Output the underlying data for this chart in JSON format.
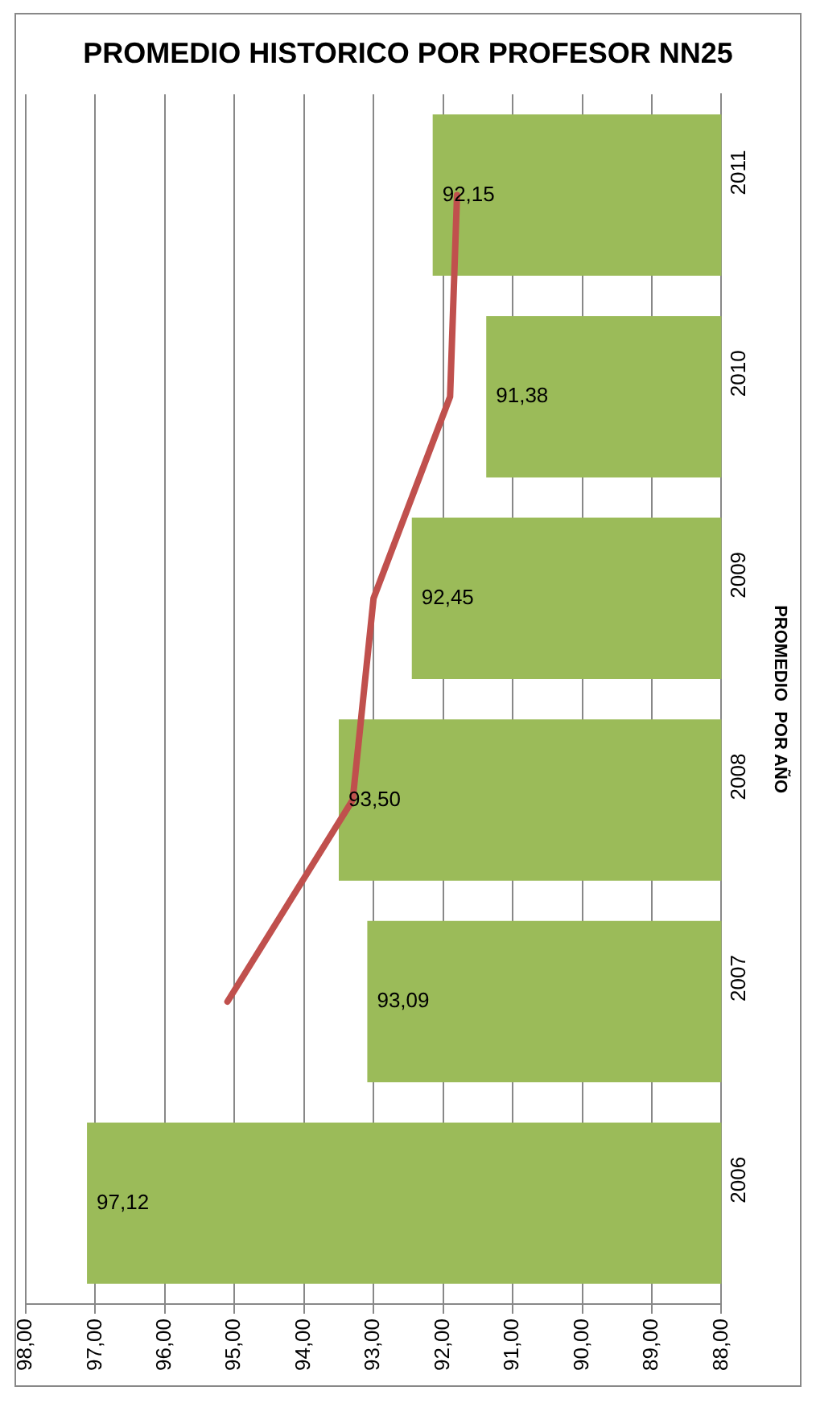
{
  "chart_data": {
    "type": "bar",
    "orientation": "horizontal",
    "title": "PROMEDIO HISTORICO POR PROFESOR NN25",
    "ylabel": "PROMEDIO  POR AÑO",
    "categories": [
      "2011",
      "2010",
      "2009",
      "2008",
      "2007",
      "2006"
    ],
    "series": [
      {
        "color": "#9bbb59",
        "values": [
          92.15,
          91.38,
          92.45,
          93.5,
          93.09,
          97.12
        ],
        "value_labels": [
          "92,15",
          "91,38",
          "92,45",
          "93,50",
          "93,09",
          "97,12"
        ]
      },
      {
        "type": "line",
        "color": "#c0504d",
        "values": [
          91.8,
          91.9,
          93.0,
          93.3,
          95.1,
          null
        ]
      }
    ],
    "xlim": [
      98,
      88
    ],
    "xticks": [
      {
        "value": 98,
        "label": "98,00"
      },
      {
        "value": 97,
        "label": "97,00"
      },
      {
        "value": 96,
        "label": "96,00"
      },
      {
        "value": 95,
        "label": "95,00"
      },
      {
        "value": 94,
        "label": "94,00"
      },
      {
        "value": 93,
        "label": "93,00"
      },
      {
        "value": 92,
        "label": "92,00"
      },
      {
        "value": 91,
        "label": "91,00"
      },
      {
        "value": 90,
        "label": "90,00"
      },
      {
        "value": 89,
        "label": "89,00"
      },
      {
        "value": 88,
        "label": "88,00"
      }
    ],
    "grid": "x",
    "marker": "none",
    "legend": false
  }
}
